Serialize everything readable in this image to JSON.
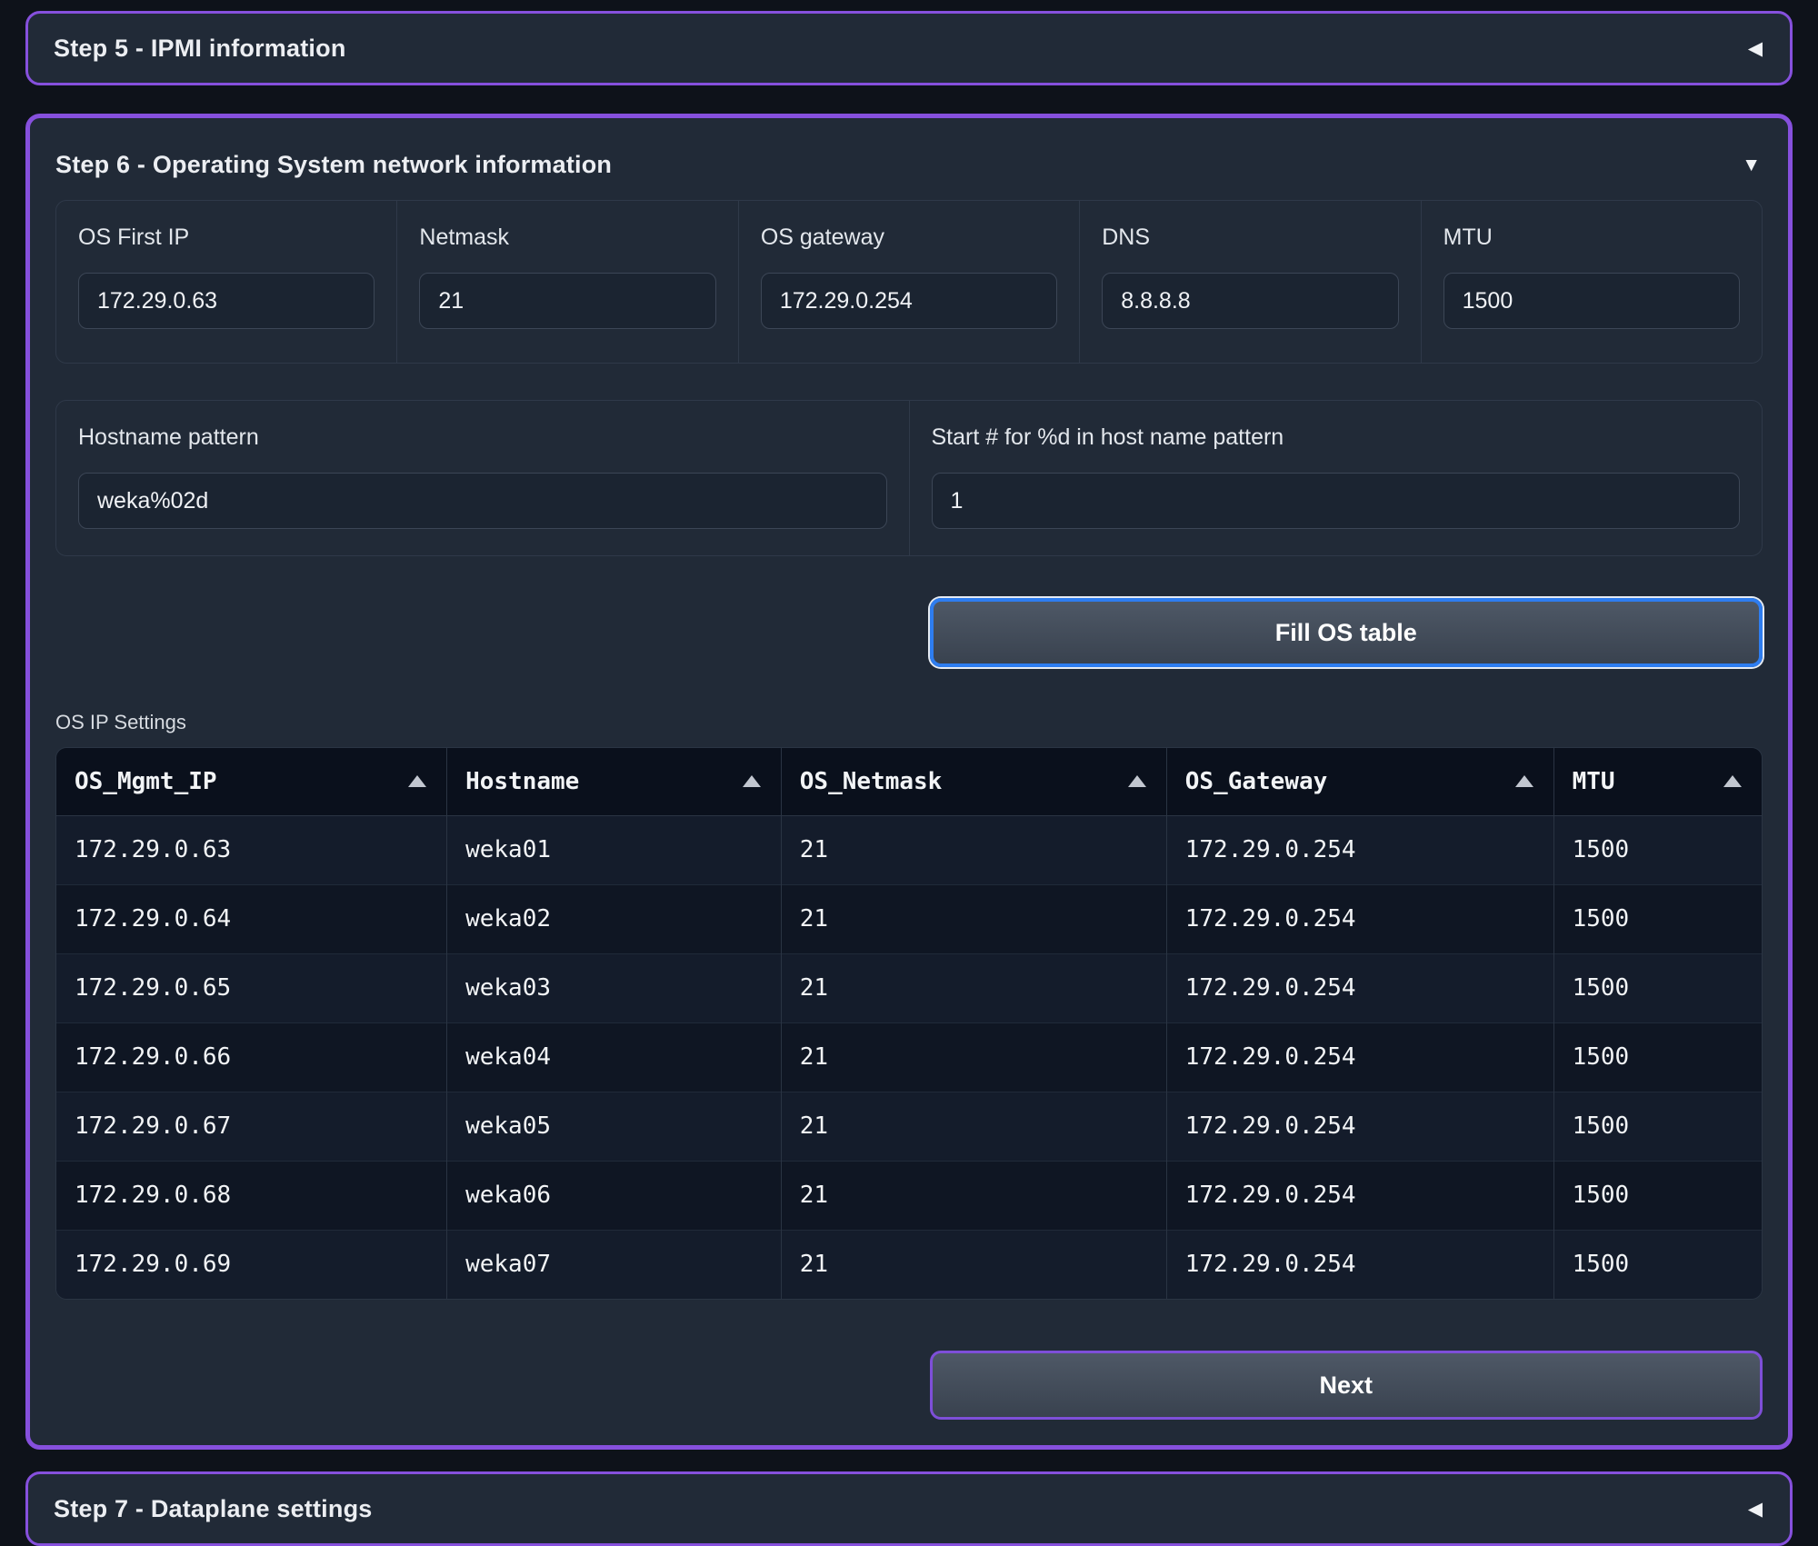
{
  "accordion": {
    "step5": {
      "title": "Step 5 - IPMI information",
      "state": "collapsed",
      "caret_icon": "◀"
    },
    "step6": {
      "title": "Step 6 - Operating System network information",
      "state": "expanded",
      "caret_icon": "▼",
      "fields_row1": [
        {
          "label": "OS First IP",
          "value": "172.29.0.63"
        },
        {
          "label": "Netmask",
          "value": "21"
        },
        {
          "label": "OS gateway",
          "value": "172.29.0.254"
        },
        {
          "label": "DNS",
          "value": "8.8.8.8"
        },
        {
          "label": "MTU",
          "value": "1500"
        }
      ],
      "fields_row2": [
        {
          "label": "Hostname pattern",
          "value": "weka%02d"
        },
        {
          "label": "Start # for %d in host name pattern",
          "value": "1"
        }
      ],
      "fill_button_label": "Fill OS table",
      "table_caption": "OS IP Settings",
      "table": {
        "columns": [
          "OS_Mgmt_IP",
          "Hostname",
          "OS_Netmask",
          "OS_Gateway",
          "MTU"
        ],
        "rows": [
          [
            "172.29.0.63",
            "weka01",
            "21",
            "172.29.0.254",
            "1500"
          ],
          [
            "172.29.0.64",
            "weka02",
            "21",
            "172.29.0.254",
            "1500"
          ],
          [
            "172.29.0.65",
            "weka03",
            "21",
            "172.29.0.254",
            "1500"
          ],
          [
            "172.29.0.66",
            "weka04",
            "21",
            "172.29.0.254",
            "1500"
          ],
          [
            "172.29.0.67",
            "weka05",
            "21",
            "172.29.0.254",
            "1500"
          ],
          [
            "172.29.0.68",
            "weka06",
            "21",
            "172.29.0.254",
            "1500"
          ],
          [
            "172.29.0.69",
            "weka07",
            "21",
            "172.29.0.254",
            "1500"
          ]
        ]
      },
      "next_button_label": "Next"
    },
    "step7": {
      "title": "Step 7 - Dataplane settings",
      "state": "collapsed",
      "caret_icon": "◀"
    }
  },
  "colors": {
    "accent_purple": "#8650dd",
    "accent_blue": "#2e7df0",
    "panel_bg": "#212a37",
    "page_bg": "#0e121a"
  }
}
